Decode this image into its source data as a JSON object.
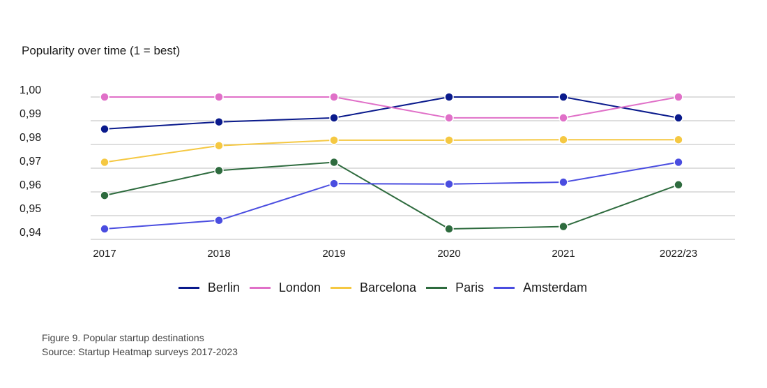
{
  "chart_data": {
    "type": "line",
    "title": "Popularity over time (1 = best)",
    "categories": [
      "2017",
      "2018",
      "2019",
      "2020",
      "2021",
      "2022/23"
    ],
    "y_ticks": [
      "1,00",
      "0,99",
      "0,98",
      "0,97",
      "0,96",
      "0,95",
      "0,94"
    ],
    "ylim": [
      0.94,
      1.0
    ],
    "grid": true,
    "legend_position": "bottom",
    "series": [
      {
        "name": "Berlin",
        "color": "#0a1a8c",
        "values": [
          0.9865,
          0.9895,
          0.9912,
          1.0,
          1.0,
          0.9912
        ]
      },
      {
        "name": "London",
        "color": "#e070c8",
        "values": [
          1.0,
          1.0,
          1.0,
          0.9912,
          0.9912,
          1.0
        ]
      },
      {
        "name": "Barcelona",
        "color": "#f5c842",
        "values": [
          0.9725,
          0.9795,
          0.9818,
          0.9818,
          0.982,
          0.982
        ]
      },
      {
        "name": "Paris",
        "color": "#2e6b3e",
        "values": [
          0.9585,
          0.969,
          0.9725,
          0.9444,
          0.9454,
          0.963
        ]
      },
      {
        "name": "Amsterdam",
        "color": "#4a4de0",
        "values": [
          0.9444,
          0.948,
          0.9635,
          0.9633,
          0.9641,
          0.9725
        ]
      }
    ]
  },
  "caption": {
    "line1": "Figure 9. Popular startup destinations",
    "line2": "Source: Startup Heatmap surveys 2017-2023"
  }
}
